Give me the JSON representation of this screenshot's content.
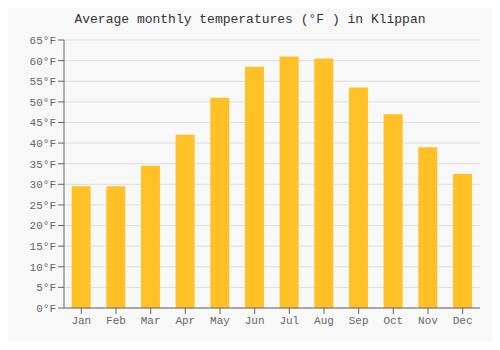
{
  "chart_data": {
    "type": "bar",
    "title": "Average monthly temperatures (°F ) in Klippan",
    "categories": [
      "Jan",
      "Feb",
      "Mar",
      "Apr",
      "May",
      "Jun",
      "Jul",
      "Aug",
      "Sep",
      "Oct",
      "Nov",
      "Dec"
    ],
    "values": [
      29.5,
      29.5,
      34.5,
      42,
      51,
      58.5,
      61,
      60.5,
      53.5,
      47,
      39,
      32.5
    ],
    "color": "#FFC125",
    "ylim": [
      0,
      65
    ],
    "yticks": [
      {
        "value": 0,
        "label": "0°F"
      },
      {
        "value": 5,
        "label": "5°F"
      },
      {
        "value": 10,
        "label": "10°F"
      },
      {
        "value": 15,
        "label": "15°F"
      },
      {
        "value": 20,
        "label": "20°F"
      },
      {
        "value": 25,
        "label": "25°F"
      },
      {
        "value": 30,
        "label": "30°F"
      },
      {
        "value": 35,
        "label": "35°F"
      },
      {
        "value": 40,
        "label": "40°F"
      },
      {
        "value": 45,
        "label": "45°F"
      },
      {
        "value": 50,
        "label": "50°F"
      },
      {
        "value": 55,
        "label": "55°F"
      },
      {
        "value": 60,
        "label": "60°F"
      },
      {
        "value": 65,
        "label": "65°F"
      }
    ],
    "grid": true
  }
}
